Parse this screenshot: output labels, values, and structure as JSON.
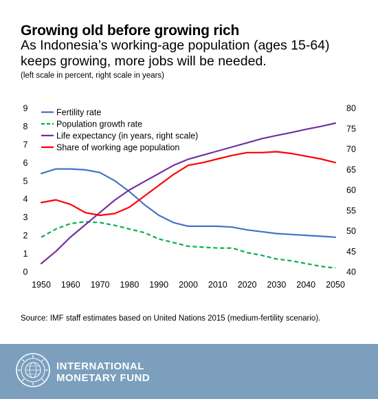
{
  "header": {
    "title": "Growing old before growing rich",
    "subtitle": "As Indonesia’s working-age population (ages 15-64) keeps growing, more jobs will be needed.",
    "scale_note": "(left scale in percent, right scale in years)"
  },
  "source": "Source: IMF staff estimates based on United Nations 2015 (medium-fertility scenario).",
  "footer": {
    "org_line1": "INTERNATIONAL",
    "org_line2": "MONETARY FUND",
    "background_color": "#7b9fbd"
  },
  "chart_data": {
    "type": "line",
    "x": [
      1950,
      1955,
      1960,
      1965,
      1970,
      1975,
      1980,
      1985,
      1990,
      1995,
      2000,
      2005,
      2010,
      2015,
      2020,
      2025,
      2030,
      2035,
      2040,
      2045,
      2050
    ],
    "xlim": [
      1950,
      2050
    ],
    "xticks": [
      "1950",
      "1960",
      "1970",
      "1980",
      "1990",
      "2000",
      "2010",
      "2020",
      "2030",
      "2040",
      "2050"
    ],
    "ylim_left": [
      0,
      9
    ],
    "yticks_left": [
      "0",
      "1",
      "2",
      "3",
      "4",
      "5",
      "6",
      "7",
      "8",
      "9"
    ],
    "ylim_right": [
      40,
      80
    ],
    "yticks_right": [
      "40",
      "45",
      "50",
      "55",
      "60",
      "65",
      "70",
      "75",
      "80"
    ],
    "grid": false,
    "legend_position": "top-left",
    "series": [
      {
        "name": "Fertility rate",
        "axis": "left",
        "color": "#4472c4",
        "dash": "solid",
        "values": [
          5.4,
          5.65,
          5.65,
          5.6,
          5.45,
          5.0,
          4.4,
          3.7,
          3.1,
          2.7,
          2.5,
          2.5,
          2.5,
          2.45,
          2.3,
          2.2,
          2.1,
          2.05,
          2.0,
          1.95,
          1.9
        ]
      },
      {
        "name": "Population growth rate",
        "axis": "left",
        "color": "#00b050",
        "dash": "dashed",
        "values": [
          1.9,
          2.35,
          2.65,
          2.75,
          2.7,
          2.55,
          2.35,
          2.15,
          1.8,
          1.6,
          1.4,
          1.35,
          1.3,
          1.3,
          1.05,
          0.9,
          0.7,
          0.6,
          0.45,
          0.3,
          0.2
        ]
      },
      {
        "name": "Life expectancy (in years, right scale)",
        "axis": "right",
        "color": "#7030a0",
        "dash": "solid",
        "values": [
          42,
          45,
          48.5,
          51.5,
          54.5,
          57.5,
          60,
          62,
          64,
          66,
          67.5,
          68.5,
          69.5,
          70.5,
          71.5,
          72.5,
          73.3,
          74.0,
          74.8,
          75.5,
          76.3
        ]
      },
      {
        "name": "Share of working age population",
        "axis": "left",
        "color": "#ff0000",
        "dash": "solid",
        "values": [
          3.8,
          3.95,
          3.7,
          3.25,
          3.1,
          3.2,
          3.55,
          4.15,
          4.75,
          5.35,
          5.85,
          6.0,
          6.2,
          6.4,
          6.55,
          6.55,
          6.6,
          6.5,
          6.35,
          6.2,
          6.0
        ]
      }
    ]
  }
}
